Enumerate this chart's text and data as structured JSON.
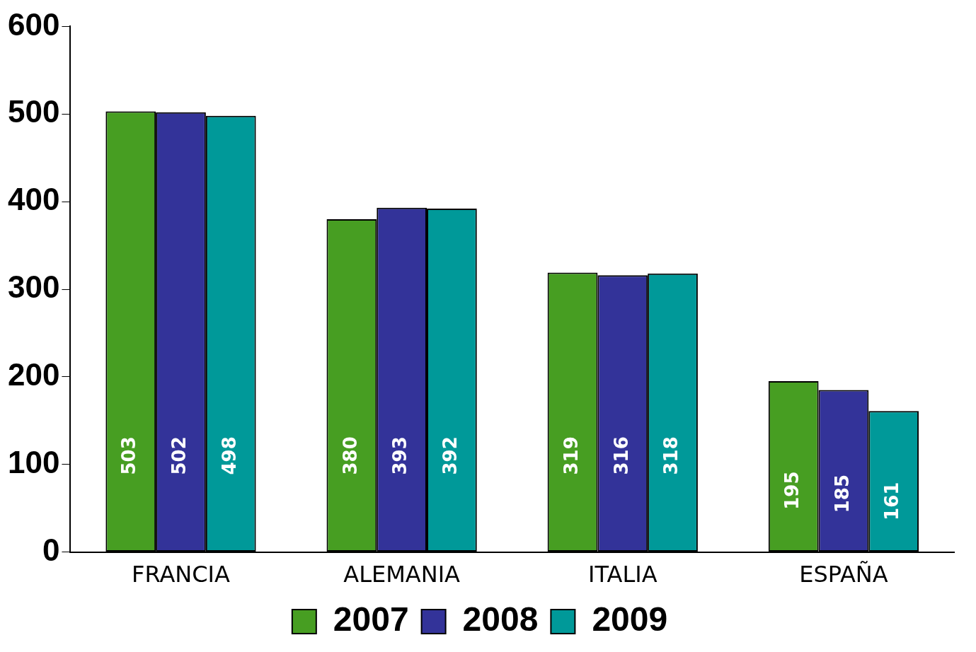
{
  "chart_data": {
    "type": "bar",
    "categories": [
      "FRANCIA",
      "ALEMANIA",
      "ITALIA",
      "ESPAÑA"
    ],
    "series": [
      {
        "name": "2007",
        "color": "#479e22",
        "values": [
          503,
          380,
          319,
          195
        ]
      },
      {
        "name": "2008",
        "color": "#333399",
        "values": [
          502,
          393,
          316,
          185
        ]
      },
      {
        "name": "2009",
        "color": "#009999",
        "values": [
          498,
          392,
          318,
          161
        ]
      }
    ],
    "ylim": [
      0,
      600
    ],
    "yticks": [
      0,
      100,
      200,
      300,
      400,
      500,
      600
    ],
    "grid": false,
    "legend": "bottom",
    "data_labels": true
  }
}
